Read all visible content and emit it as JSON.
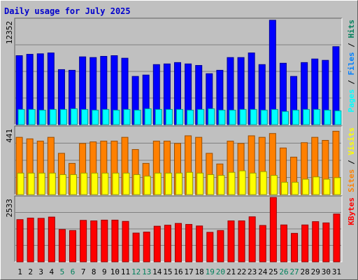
{
  "chart_data": {
    "type": "bar",
    "title": "Daily usage for July 2025",
    "categories": [
      "1",
      "2",
      "3",
      "4",
      "5",
      "6",
      "7",
      "8",
      "9",
      "10",
      "11",
      "12",
      "13",
      "14",
      "15",
      "16",
      "17",
      "18",
      "19",
      "20",
      "21",
      "22",
      "23",
      "24",
      "25",
      "26",
      "27",
      "28",
      "29",
      "30",
      "31"
    ],
    "weekend_days": [
      "5",
      "6",
      "12",
      "13",
      "19",
      "20",
      "26",
      "27"
    ],
    "colors": {
      "background": "#c0c0c0",
      "pages": "#00ffff",
      "hits": "#0000ff",
      "visits": "#ffff00",
      "sites": "#ff8000",
      "kbytes": "#ff0000",
      "title": "#0000cc",
      "weekday_label": "#000000",
      "weekend_label": "#00805c",
      "files_label": "#0080ff",
      "hits_label": "#00805c"
    },
    "panels": [
      {
        "name": "hits",
        "max_label": "12352",
        "ylim": [
          0,
          12352
        ],
        "legend": [
          "Pages",
          "/",
          "Files",
          "/",
          "Hits"
        ],
        "series": [
          {
            "name": "Hits",
            "values": [
              8110,
              8270,
              8330,
              8430,
              6470,
              6390,
              7970,
              7890,
              8030,
              8110,
              7810,
              5670,
              5830,
              7060,
              7140,
              7300,
              7140,
              6960,
              5990,
              6390,
              7890,
              7890,
              8430,
              7060,
              12280,
              7220,
              5670,
              7300,
              7720,
              7560,
              9170
            ]
          },
          {
            "name": "Files",
            "values": [
              0,
              0,
              0,
              0,
              0,
              0,
              0,
              0,
              0,
              0,
              0,
              0,
              0,
              0,
              0,
              0,
              0,
              0,
              0,
              0,
              0,
              0,
              0,
              0,
              0,
              0,
              0,
              0,
              0,
              0,
              0
            ]
          },
          {
            "name": "Pages",
            "values": [
              1780,
              1780,
              1700,
              1780,
              1780,
              1860,
              1780,
              1700,
              1780,
              1700,
              1780,
              1700,
              1860,
              1780,
              1780,
              1780,
              1700,
              1780,
              1860,
              1700,
              1700,
              1780,
              1780,
              1700,
              1780,
              1540,
              1700,
              1780,
              1780,
              1700,
              1620
            ]
          }
        ]
      },
      {
        "name": "visits",
        "max_label": "441",
        "ylim": [
          0,
          441
        ],
        "legend": [
          "Sites",
          "/",
          "Visits"
        ],
        "series": [
          {
            "name": "Sites",
            "values": [
              376,
              366,
              351,
              376,
              271,
              205,
              336,
              346,
              351,
              351,
              376,
              296,
              205,
              351,
              351,
              336,
              386,
              376,
              271,
              201,
              351,
              336,
              386,
              376,
              401,
              306,
              246,
              341,
              376,
              356,
              416
            ]
          },
          {
            "name": "Visits",
            "values": [
              141,
              141,
              141,
              141,
              131,
              131,
              141,
              141,
              141,
              141,
              141,
              131,
              121,
              141,
              141,
              141,
              146,
              141,
              131,
              126,
              146,
              156,
              141,
              151,
              126,
              81,
              81,
              101,
              116,
              101,
              111
            ]
          }
        ]
      },
      {
        "name": "kbytes",
        "max_label": "2533",
        "ylim": [
          0,
          2533
        ],
        "legend": [
          "KBytes"
        ],
        "series": [
          {
            "name": "KBytes",
            "values": [
              1660,
              1720,
              1710,
              1760,
              1270,
              1230,
              1630,
              1610,
              1640,
              1640,
              1590,
              1130,
              1170,
              1400,
              1440,
              1510,
              1470,
              1410,
              1160,
              1230,
              1610,
              1610,
              1770,
              1430,
              2530,
              1450,
              1120,
              1450,
              1580,
              1530,
              1880
            ]
          }
        ]
      }
    ]
  }
}
